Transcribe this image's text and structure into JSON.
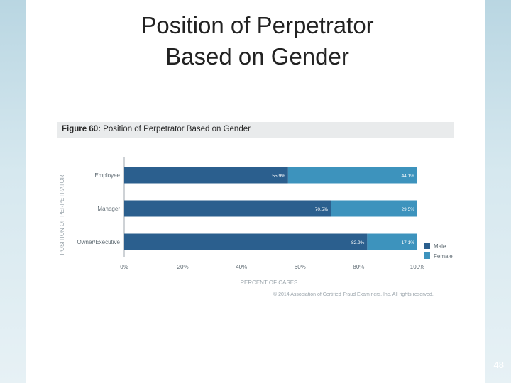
{
  "slide": {
    "title_line1": "Position of Perpetrator",
    "title_line2": "Based on Gender",
    "page_number": "48"
  },
  "figure": {
    "label": "Figure 60:",
    "caption": "Position of Perpetrator Based on Gender",
    "copyright": "© 2014 Association of Certified Fraud Examiners, Inc. All rights reserved."
  },
  "colors": {
    "male": "#2b5f8e",
    "female": "#3d93bd",
    "axis": "#9ea6ac",
    "label": "#5f6b73"
  },
  "chart_data": {
    "type": "bar",
    "orientation": "horizontal",
    "stacked": true,
    "categories": [
      "Employee",
      "Manager",
      "Owner/Executive"
    ],
    "series": [
      {
        "name": "Male",
        "values": [
          55.9,
          70.5,
          82.9
        ],
        "labels": [
          "55.9%",
          "70.5%",
          "82.9%"
        ]
      },
      {
        "name": "Female",
        "values": [
          44.1,
          29.5,
          17.1
        ],
        "labels": [
          "44.1%",
          "29.5%",
          "17.1%"
        ]
      }
    ],
    "xlim": [
      0,
      100
    ],
    "xticks": [
      "0%",
      "20%",
      "40%",
      "60%",
      "80%",
      "100%"
    ],
    "xlabel": "PERCENT OF CASES",
    "ylabel": "POSITION OF PERPETRATOR",
    "legend": "bottom-right"
  }
}
